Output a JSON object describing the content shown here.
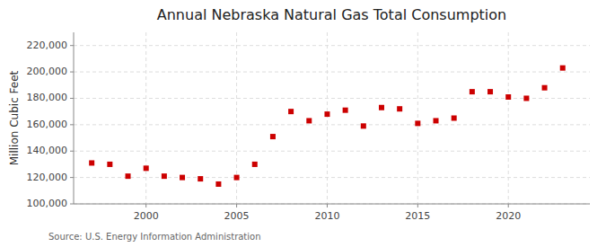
{
  "chart_data": {
    "type": "scatter",
    "title": "Annual Nebraska Natural Gas Total Consumption",
    "y_label": "Million Cubic Feet",
    "annotations": [
      "Source: U.S. Energy Information Administration"
    ],
    "x": [
      1997,
      1998,
      1999,
      2000,
      2001,
      2002,
      2003,
      2004,
      2005,
      2006,
      2007,
      2008,
      2009,
      2010,
      2011,
      2012,
      2013,
      2014,
      2015,
      2016,
      2017,
      2018,
      2019,
      2020,
      2021,
      2022,
      2023
    ],
    "values": [
      131000,
      130000,
      121000,
      127000,
      121000,
      120000,
      119000,
      115000,
      120000,
      130000,
      151000,
      170000,
      163000,
      168000,
      171000,
      159000,
      173000,
      172000,
      161000,
      163000,
      165000,
      185000,
      185000,
      181000,
      180000,
      188000,
      203000
    ],
    "color": "#cc0000",
    "marker": "square",
    "grid": true,
    "xlim": [
      1996,
      2024.5
    ],
    "xticks": [
      2000,
      2005,
      2010,
      2015,
      2020
    ],
    "ylim": [
      100000,
      230000
    ],
    "yticks": [
      {
        "value": 100000,
        "label": "100,000"
      },
      {
        "value": 120000,
        "label": "120,000"
      },
      {
        "value": 140000,
        "label": "140,000"
      },
      {
        "value": 160000,
        "label": "160,000"
      },
      {
        "value": 180000,
        "label": "180,000"
      },
      {
        "value": 200000,
        "label": "200,000"
      },
      {
        "value": 220000,
        "label": "220,000"
      }
    ]
  }
}
